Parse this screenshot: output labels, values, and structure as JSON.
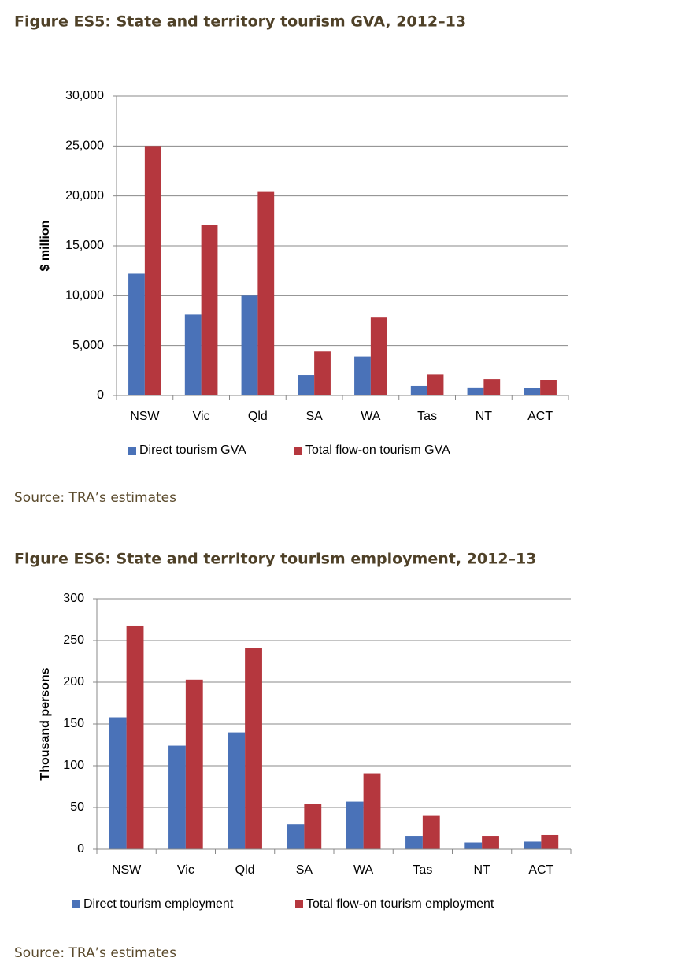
{
  "chart_data": [
    {
      "type": "bar",
      "title": "Figure ES5: State and territory tourism GVA, 2012–13",
      "y_label": "$ million",
      "categories": [
        "NSW",
        "Vic",
        "Qld",
        "SA",
        "WA",
        "Tas",
        "NT",
        "ACT"
      ],
      "series": [
        {
          "name": "Direct tourism GVA",
          "color": "#4a72b8",
          "values": [
            12200,
            8100,
            10000,
            2050,
            3900,
            950,
            800,
            750
          ]
        },
        {
          "name": "Total flow-on tourism GVA",
          "color": "#b5373e",
          "values": [
            25000,
            17100,
            20400,
            4400,
            7800,
            2100,
            1650,
            1500
          ]
        }
      ],
      "ylim": [
        0,
        30000
      ],
      "yticks": [
        0,
        {
          "value": 5000,
          "label": "5,000"
        },
        {
          "value": 10000,
          "label": "10,000"
        },
        {
          "value": 15000,
          "label": "15,000"
        },
        {
          "value": 20000,
          "label": "20,000"
        },
        {
          "value": 25000,
          "label": "25,000"
        },
        {
          "value": 30000,
          "label": "30,000"
        }
      ],
      "grid": true,
      "legend": "bottom",
      "source": "Source: TRA’s estimates"
    },
    {
      "type": "bar",
      "title": "Figure ES6: State and territory tourism employment, 2012–13",
      "y_label": "Thousand persons",
      "categories": [
        "NSW",
        "Vic",
        "Qld",
        "SA",
        "WA",
        "Tas",
        "NT",
        "ACT"
      ],
      "series": [
        {
          "name": "Direct tourism employment",
          "color": "#4a72b8",
          "values": [
            158,
            124,
            140,
            30,
            57,
            16,
            8,
            9
          ]
        },
        {
          "name": "Total flow-on tourism employment",
          "color": "#b5373e",
          "values": [
            267,
            203,
            241,
            54,
            91,
            40,
            16,
            17
          ]
        }
      ],
      "ylim": [
        0,
        300
      ],
      "yticks": [
        0,
        50,
        100,
        150,
        200,
        250,
        300
      ],
      "grid": true,
      "legend": "bottom",
      "source": "Source: TRA’s estimates"
    }
  ]
}
